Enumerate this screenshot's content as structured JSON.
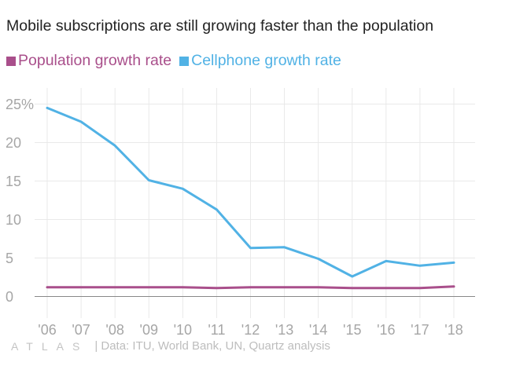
{
  "chart_data": {
    "type": "line",
    "title": "Mobile subscriptions are still growing faster than the population",
    "categories": [
      "'06",
      "'07",
      "'08",
      "'09",
      "'10",
      "'11",
      "'12",
      "'13",
      "'14",
      "'15",
      "'16",
      "'17",
      "'18"
    ],
    "series": [
      {
        "name": "Population growth rate",
        "color": "#a94f8b",
        "values": [
          1.2,
          1.2,
          1.2,
          1.2,
          1.2,
          1.1,
          1.2,
          1.2,
          1.2,
          1.1,
          1.1,
          1.1,
          1.3
        ]
      },
      {
        "name": "Cellphone growth rate",
        "color": "#51b2e5",
        "values": [
          24.5,
          22.7,
          19.6,
          15.1,
          14.0,
          11.3,
          6.3,
          6.4,
          4.9,
          2.6,
          4.6,
          4.0,
          4.4
        ]
      }
    ],
    "y_ticks": [
      0,
      5,
      10,
      15,
      20,
      25
    ],
    "y_tick_labels": [
      "0",
      "5",
      "10",
      "15",
      "20",
      "25%"
    ],
    "ylim": [
      -3,
      27
    ],
    "xlabel": "",
    "ylabel": "",
    "grid": true,
    "legend_position": "top-left"
  },
  "footer": {
    "logo": "ATLAS",
    "source": "| Data: ITU, World Bank, UN, Quartz analysis"
  },
  "colors": {
    "grid": "#e9e9e9",
    "baseline": "#888888",
    "tick_text": "#a6a6a6",
    "title_text": "#222222"
  }
}
